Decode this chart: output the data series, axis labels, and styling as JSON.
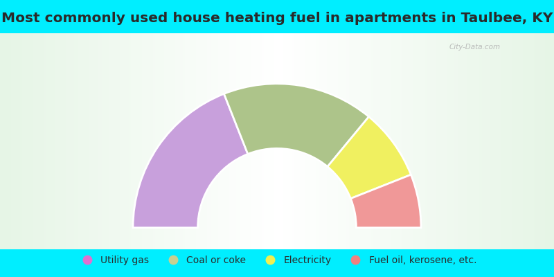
{
  "title": "Most commonly used house heating fuel in apartments in Taulbee, KY",
  "segments": [
    {
      "label": "Utility gas",
      "value": 38,
      "color": "#c8a0dc"
    },
    {
      "label": "Coal or coke",
      "value": 34,
      "color": "#adc48a"
    },
    {
      "label": "Electricity",
      "value": 16,
      "color": "#f0f060"
    },
    {
      "label": "Fuel oil, kerosene, etc.",
      "value": 12,
      "color": "#f09898"
    }
  ],
  "bg_color": "#00eeff",
  "title_color": "#2a2a2a",
  "title_fontsize": 14.5,
  "legend_fontsize": 10,
  "outer_r": 1.0,
  "inner_r": 0.55,
  "legend_dot_colors": [
    "#e070d0",
    "#c8d090",
    "#f0f050",
    "#f08080"
  ]
}
